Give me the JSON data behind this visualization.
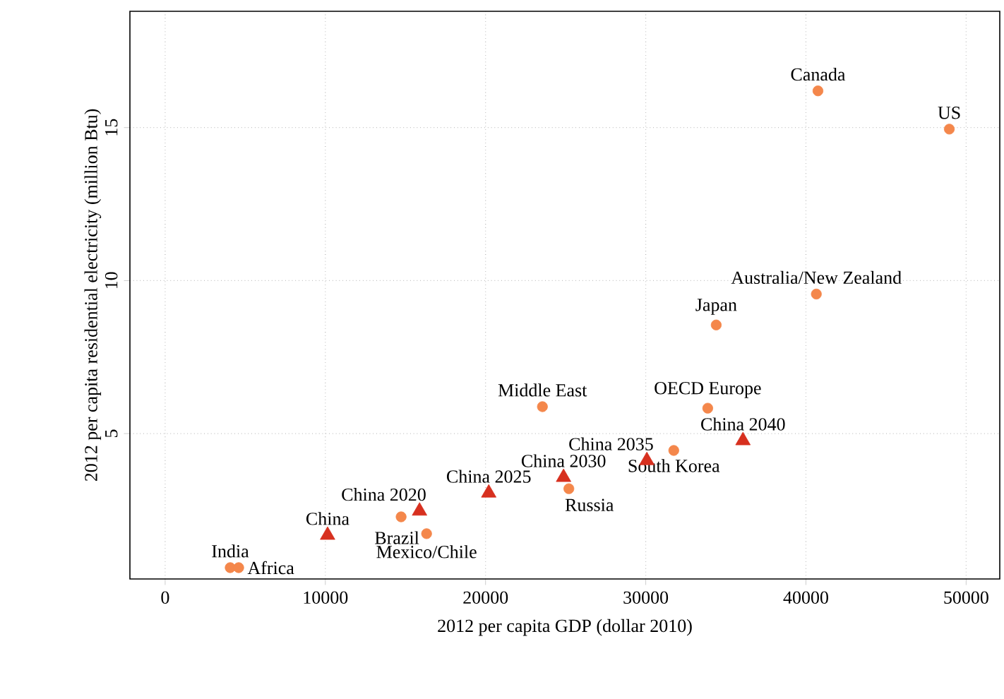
{
  "chart_data": {
    "type": "scatter",
    "xlabel": "2012 per capita GDP (dollar 2010)",
    "ylabel": "2012 per capita residential electricity (million Btu)",
    "xlim": [
      -2200,
      52100
    ],
    "ylim": [
      0.25,
      18.8
    ],
    "xticks": [
      0,
      10000,
      20000,
      30000,
      40000,
      50000
    ],
    "yticks": [
      5,
      10,
      15
    ],
    "grid": true,
    "series": [
      {
        "color": "#f4874b",
        "marker": "circle",
        "x": [
          40750,
          48950,
          40650,
          34400,
          23550,
          33870,
          31750,
          25200,
          14730,
          16320,
          4060,
          4590
        ],
        "values": [
          16.2,
          14.95,
          9.56,
          8.55,
          5.88,
          5.83,
          4.45,
          3.2,
          2.28,
          1.73,
          0.62,
          0.62
        ]
      },
      {
        "color": "#d7301f",
        "marker": "triangle",
        "x": [
          10140,
          15880,
          20200,
          24870,
          30070,
          36070
        ],
        "values": [
          1.68,
          2.47,
          3.06,
          3.57,
          4.12,
          4.77
        ]
      }
    ],
    "annotations": [
      {
        "text": "Canada",
        "x": 40750,
        "y": 16.2
      },
      {
        "text": "US",
        "x": 48950,
        "y": 14.95
      },
      {
        "text": "Australia/New Zealand",
        "x": 40650,
        "y": 9.56
      },
      {
        "text": "Japan",
        "x": 34400,
        "y": 8.55
      },
      {
        "text": "Middle East",
        "x": 23550,
        "y": 5.88
      },
      {
        "text": "OECD Europe",
        "x": 33870,
        "y": 5.83
      },
      {
        "text": "South Korea",
        "x": 31750,
        "y": 4.45
      },
      {
        "text": "Russia",
        "x": 25200,
        "y": 3.2
      },
      {
        "text": "Brazil",
        "x": 14730,
        "y": 2.28
      },
      {
        "text": "Mexico/Chile",
        "x": 16320,
        "y": 1.73
      },
      {
        "text": "India",
        "x": 4060,
        "y": 0.62
      },
      {
        "text": "Africa",
        "x": 4590,
        "y": 0.62
      },
      {
        "text": "China",
        "x": 10140,
        "y": 1.68
      },
      {
        "text": "China 2020",
        "x": 15880,
        "y": 2.47
      },
      {
        "text": "China 2025",
        "x": 20200,
        "y": 3.06
      },
      {
        "text": "China 2030",
        "x": 24870,
        "y": 3.57
      },
      {
        "text": "China 2035",
        "x": 30070,
        "y": 4.12
      },
      {
        "text": "China 2040",
        "x": 36070,
        "y": 4.77
      }
    ]
  }
}
